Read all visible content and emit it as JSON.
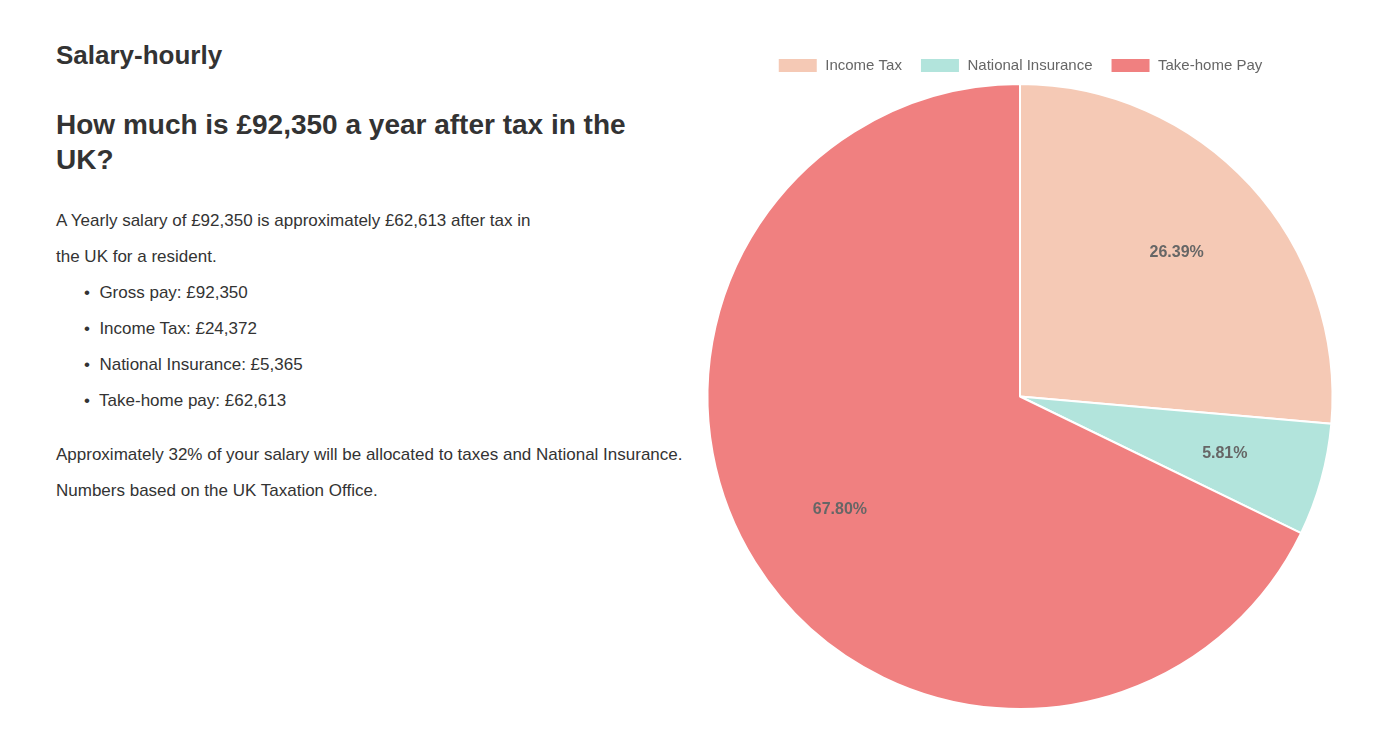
{
  "chart_data": {
    "type": "pie",
    "title": "How much is £92,350 a year after tax in the UK?",
    "categories": [
      "Income Tax",
      "National Insurance",
      "Take-home Pay"
    ],
    "values": [
      26.39,
      5.81,
      67.8
    ],
    "value_labels": [
      "26.39%",
      "5.81%",
      "67.80%"
    ],
    "colors": [
      "#f5c9b5",
      "#b2e4dc",
      "#f08080"
    ],
    "data_labels": true,
    "legend": "top",
    "annotations": [
      [
        "S",
        "alary-hourly"
      ],
      [
        "A Yearly salary of £92,350 is approximately ",
        "£62,613 after tax",
        " in"
      ],
      [
        "the UK for a resident."
      ],
      [
        "•  Gross pay: £92,350"
      ],
      [
        "•  Income Tax: £24,372"
      ],
      [
        "•  National Insurance: £5,365"
      ],
      [
        "•  Take-home pay: £62,613"
      ],
      [
        "Approximately 32% of your salary will be allocated to taxes and National Insurance."
      ],
      [
        "Numbers based on the ",
        "UK Taxation Office",
        "."
      ]
    ]
  }
}
